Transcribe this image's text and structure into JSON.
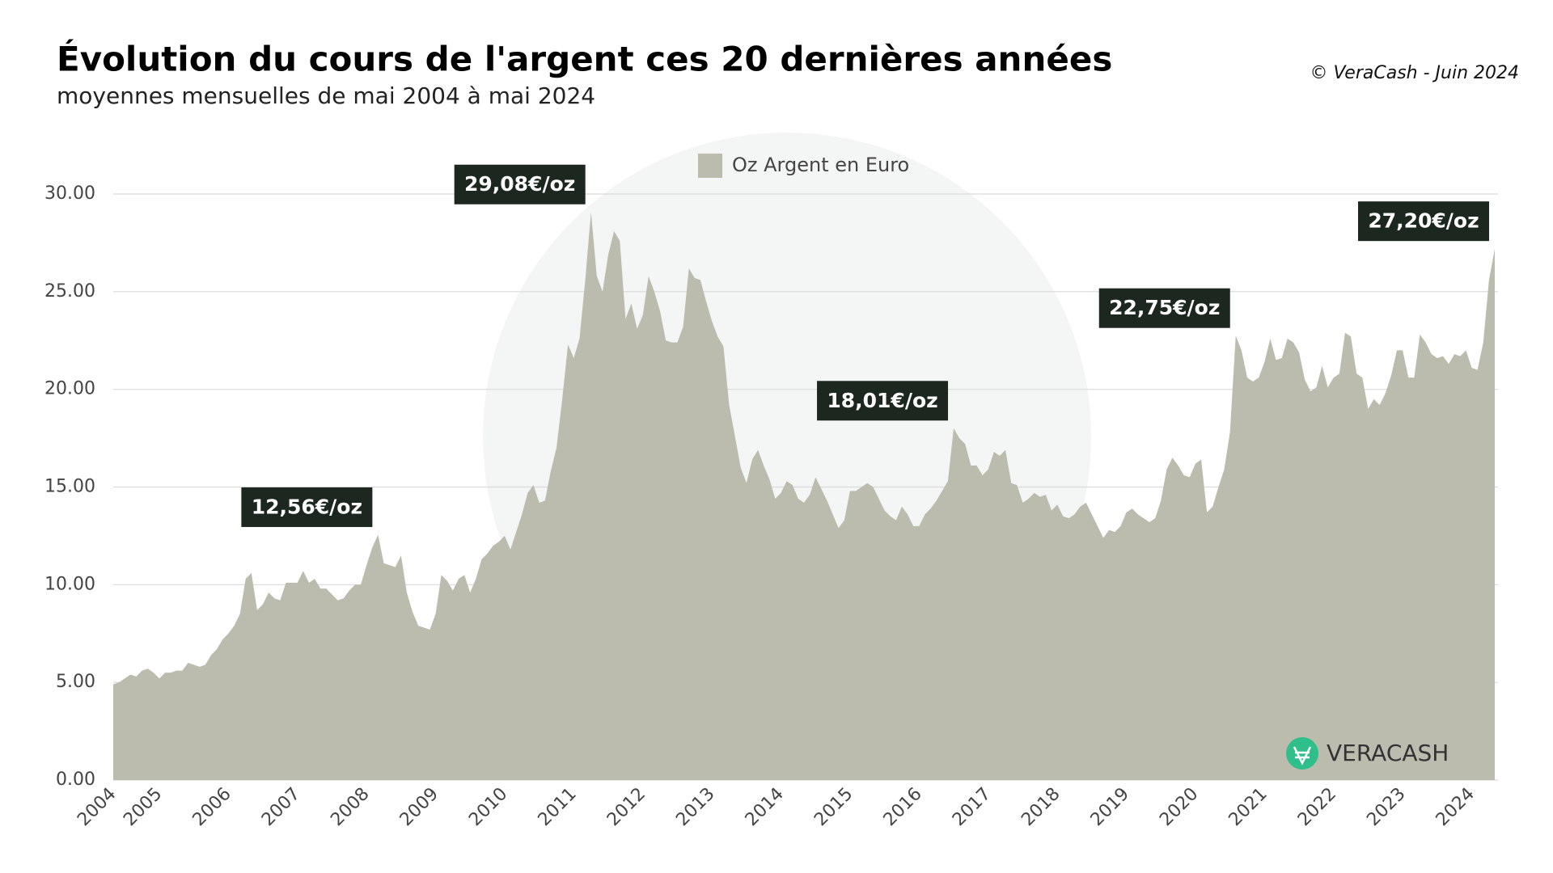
{
  "chart_data": {
    "type": "area",
    "title": "Évolution du cours de l'argent ces 20 dernières années",
    "subtitle": "moyennes mensuelles de mai 2004 à mai 2024",
    "source": "© VeraCash - Juin 2024",
    "brand": "VERACASH",
    "categories": [
      "2004",
      null,
      null,
      null,
      null,
      null,
      null,
      null,
      "2005",
      null,
      null,
      null,
      null,
      null,
      null,
      null,
      null,
      null,
      null,
      null,
      "2006",
      null,
      null,
      null,
      null,
      null,
      null,
      null,
      null,
      null,
      null,
      null,
      "2007",
      null,
      null,
      null,
      null,
      null,
      null,
      null,
      null,
      null,
      null,
      null,
      "2008",
      null,
      null,
      null,
      null,
      null,
      null,
      null,
      null,
      null,
      null,
      null,
      "2009",
      null,
      null,
      null,
      null,
      null,
      null,
      null,
      null,
      null,
      null,
      null,
      "2010",
      null,
      null,
      null,
      null,
      null,
      null,
      null,
      null,
      null,
      null,
      null,
      "2011",
      null,
      null,
      null,
      null,
      null,
      null,
      null,
      null,
      null,
      null,
      null,
      "2012",
      null,
      null,
      null,
      null,
      null,
      null,
      null,
      null,
      null,
      null,
      null,
      "2013",
      null,
      null,
      null,
      null,
      null,
      null,
      null,
      null,
      null,
      null,
      null,
      "2014",
      null,
      null,
      null,
      null,
      null,
      null,
      null,
      null,
      null,
      null,
      null,
      "2015",
      null,
      null,
      null,
      null,
      null,
      null,
      null,
      null,
      null,
      null,
      null,
      "2016",
      null,
      null,
      null,
      null,
      null,
      null,
      null,
      null,
      null,
      null,
      null,
      "2017",
      null,
      null,
      null,
      null,
      null,
      null,
      null,
      null,
      null,
      null,
      null,
      "2018",
      null,
      null,
      null,
      null,
      null,
      null,
      null,
      null,
      null,
      null,
      null,
      "2019",
      null,
      null,
      null,
      null,
      null,
      null,
      null,
      null,
      null,
      null,
      null,
      "2020",
      null,
      null,
      null,
      null,
      null,
      null,
      null,
      null,
      null,
      null,
      null,
      "2021",
      null,
      null,
      null,
      null,
      null,
      null,
      null,
      null,
      null,
      null,
      null,
      "2022",
      null,
      null,
      null,
      null,
      null,
      null,
      null,
      null,
      null,
      null,
      null,
      "2023",
      null,
      null,
      null,
      null,
      null,
      null,
      null,
      null,
      null,
      null,
      null,
      "2024",
      null,
      null,
      null,
      null
    ],
    "series": [
      {
        "name": "Oz Argent en Euro",
        "color": "#bbbcae",
        "values": [
          4.9,
          5.0,
          5.2,
          5.4,
          5.3,
          5.6,
          5.7,
          5.5,
          5.2,
          5.5,
          5.5,
          5.6,
          5.6,
          6.0,
          5.9,
          5.8,
          5.9,
          6.4,
          6.7,
          7.2,
          7.5,
          7.9,
          8.5,
          10.3,
          10.6,
          8.7,
          9.0,
          9.6,
          9.3,
          9.2,
          10.1,
          10.1,
          10.1,
          10.7,
          10.1,
          10.3,
          9.8,
          9.8,
          9.5,
          9.2,
          9.3,
          9.7,
          10.0,
          10.0,
          11.0,
          11.9,
          12.56,
          11.1,
          11.0,
          10.9,
          11.5,
          9.6,
          8.6,
          7.9,
          7.8,
          7.7,
          8.5,
          10.5,
          10.2,
          9.7,
          10.3,
          10.5,
          9.6,
          10.3,
          11.3,
          11.6,
          12.0,
          12.2,
          12.5,
          11.8,
          12.7,
          13.6,
          14.7,
          15.1,
          14.2,
          14.3,
          15.8,
          17.0,
          19.5,
          22.3,
          21.6,
          22.6,
          25.6,
          29.08,
          25.8,
          25.0,
          26.9,
          28.1,
          27.6,
          23.6,
          24.4,
          23.1,
          23.8,
          25.8,
          25.0,
          24.0,
          22.5,
          22.4,
          22.4,
          23.2,
          26.2,
          25.7,
          25.6,
          24.5,
          23.5,
          22.7,
          22.2,
          19.2,
          17.6,
          16.0,
          15.2,
          16.4,
          16.9,
          16.1,
          15.4,
          14.4,
          14.7,
          15.3,
          15.1,
          14.4,
          14.2,
          14.6,
          15.5,
          14.9,
          14.3,
          13.6,
          12.9,
          13.3,
          14.8,
          14.8,
          15.0,
          15.2,
          15.0,
          14.4,
          13.8,
          13.5,
          13.3,
          14.0,
          13.6,
          13.0,
          13.0,
          13.6,
          13.9,
          14.3,
          14.8,
          15.3,
          18.01,
          17.5,
          17.2,
          16.1,
          16.1,
          15.6,
          15.9,
          16.8,
          16.6,
          16.9,
          15.2,
          15.1,
          14.2,
          14.4,
          14.7,
          14.5,
          14.6,
          13.8,
          14.1,
          13.5,
          13.4,
          13.6,
          14.0,
          14.2,
          13.6,
          13.0,
          12.4,
          12.8,
          12.7,
          13.0,
          13.7,
          13.9,
          13.6,
          13.4,
          13.2,
          13.4,
          14.3,
          15.9,
          16.5,
          16.1,
          15.6,
          15.5,
          16.2,
          16.4,
          13.7,
          14.0,
          15.0,
          15.9,
          17.8,
          22.75,
          22.0,
          20.6,
          20.4,
          20.6,
          21.4,
          22.6,
          21.5,
          21.6,
          22.6,
          22.4,
          21.9,
          20.5,
          19.9,
          20.1,
          21.2,
          20.1,
          20.6,
          20.8,
          22.9,
          22.7,
          20.8,
          20.6,
          19.0,
          19.5,
          19.2,
          19.8,
          20.7,
          22.0,
          22.0,
          20.6,
          20.6,
          22.8,
          22.4,
          21.8,
          21.6,
          21.7,
          21.3,
          21.8,
          21.7,
          22.0,
          21.1,
          21.0,
          22.4,
          25.6,
          27.2
        ]
      }
    ],
    "annotations": [
      {
        "text": "12,56€/oz",
        "value": 12.56
      },
      {
        "text": "29,08€/oz",
        "value": 29.08
      },
      {
        "text": "18,01€/oz",
        "value": 18.01
      },
      {
        "text": "22,75€/oz",
        "value": 22.75
      },
      {
        "text": "27,20€/oz",
        "value": 27.2
      }
    ],
    "ylim": [
      0,
      30
    ],
    "yticks": [
      {
        "value": 0,
        "label": "0.00"
      },
      {
        "value": 5,
        "label": "5.00"
      },
      {
        "value": 10,
        "label": "10.00"
      },
      {
        "value": 15,
        "label": "15.00"
      },
      {
        "value": 20,
        "label": "20.00"
      },
      {
        "value": 25,
        "label": "25.00"
      },
      {
        "value": 30,
        "label": "30.00"
      }
    ],
    "grid": true,
    "legend": "top"
  }
}
